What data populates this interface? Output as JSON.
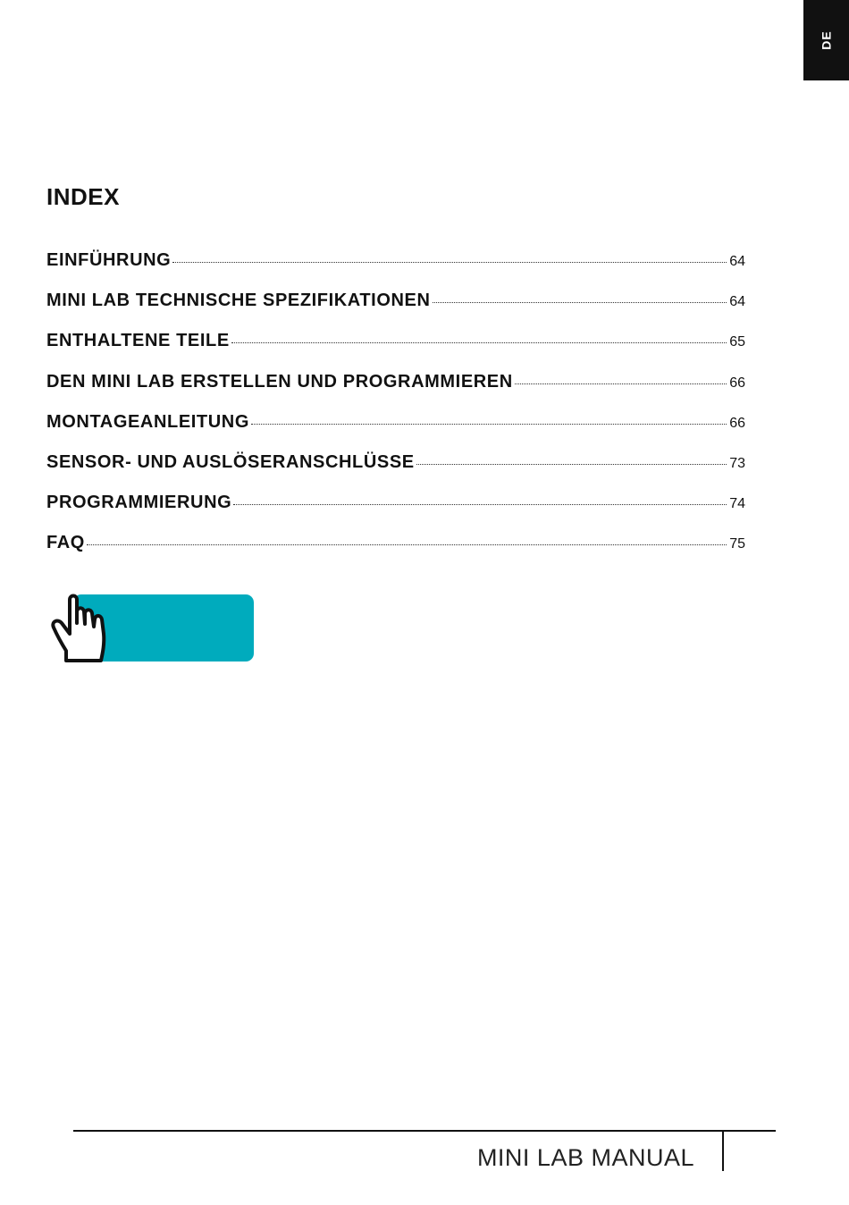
{
  "language_tab": "DE",
  "title": "INDEX",
  "toc": [
    {
      "label": "EINFÜHRUNG",
      "page": "64"
    },
    {
      "label": "MINI LAB TECHNISCHE SPEZIFIKATIONEN",
      "page": "64"
    },
    {
      "label": "ENTHALTENE TEILE",
      "page": "65"
    },
    {
      "label": "DEN MINI LAB ERSTELLEN UND PROGRAMMIEREN",
      "page": "66"
    },
    {
      "label": "MONTAGEANLEITUNG",
      "page": "66"
    },
    {
      "label": "SENSOR- UND AUSLÖSERANSCHLÜSSE",
      "page": "73"
    },
    {
      "label": "PROGRAMMIERUNG",
      "page": "74"
    },
    {
      "label": "FAQ",
      "page": "75"
    }
  ],
  "button": {
    "icon": "pointing-hand-icon",
    "color": "#00abbd"
  },
  "footer": {
    "text": "MINI LAB MANUAL"
  }
}
